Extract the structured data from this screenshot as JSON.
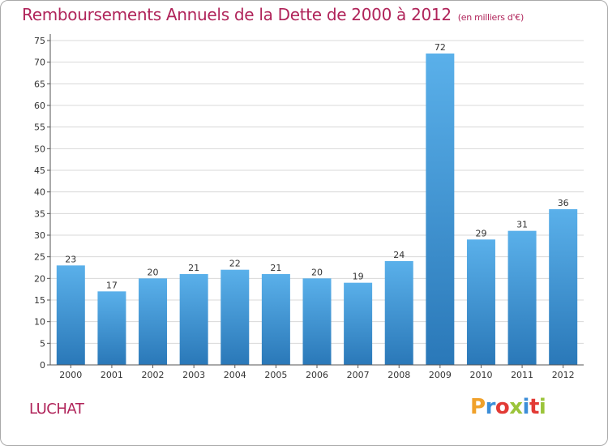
{
  "title": "Remboursements Annuels de la Dette de 2000 à 2012",
  "subtitle": "(en milliers d'€)",
  "commune": "LUCHAT",
  "logo": {
    "text": "Proxiti",
    "colors": [
      "#f0a12a",
      "#3c8ed8",
      "#e23a35",
      "#9bc43a",
      "#3c8ed8",
      "#e23a35",
      "#9bc43a"
    ]
  },
  "colors": {
    "title": "#b0245a",
    "bar_top": "#5ab0ea",
    "bar_bottom": "#2a78b8",
    "grid": "#d8d8d8"
  },
  "chart_data": {
    "type": "bar",
    "categories": [
      "2000",
      "2001",
      "2002",
      "2003",
      "2004",
      "2005",
      "2006",
      "2007",
      "2008",
      "2009",
      "2010",
      "2011",
      "2012"
    ],
    "values": [
      23,
      17,
      20,
      21,
      22,
      21,
      20,
      19,
      24,
      72,
      29,
      31,
      36
    ],
    "ylim": [
      0,
      75
    ],
    "yticks": [
      0,
      5,
      10,
      15,
      20,
      25,
      30,
      35,
      40,
      45,
      50,
      55,
      60,
      65,
      70,
      75
    ],
    "grid": true,
    "xlabel": "",
    "ylabel": ""
  }
}
